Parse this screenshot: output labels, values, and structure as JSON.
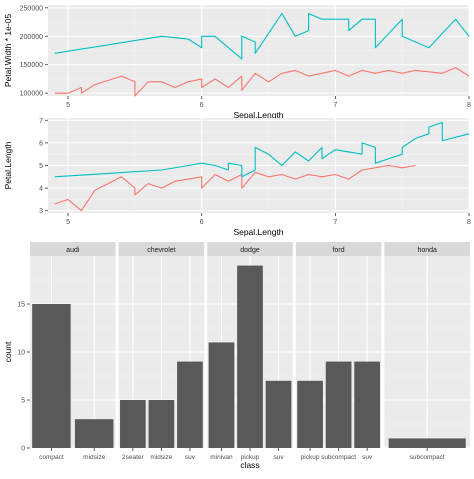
{
  "chart_data": [
    {
      "type": "line",
      "xlabel": "Sepal.Length",
      "ylabel": "Petal.Width * 1e-05",
      "xlim": [
        4.85,
        8.0
      ],
      "ylim": [
        95000,
        255000
      ],
      "x_ticks": [
        5,
        6,
        7,
        8
      ],
      "y_ticks": [
        100000,
        150000,
        200000,
        250000
      ],
      "y_tick_labels": [
        "100000",
        "150000",
        "200000",
        "250000"
      ],
      "grid": true,
      "legend": "none",
      "series": [
        {
          "color": "#F8766D",
          "points": [
            [
              4.9,
              100000
            ],
            [
              5.0,
              100000
            ],
            [
              5.1,
              110000
            ],
            [
              5.1,
              100000
            ],
            [
              5.2,
              115000
            ],
            [
              5.4,
              130000
            ],
            [
              5.5,
              120000
            ],
            [
              5.5,
              95000
            ],
            [
              5.6,
              120000
            ],
            [
              5.7,
              120000
            ],
            [
              5.8,
              110000
            ],
            [
              5.9,
              120000
            ],
            [
              6.0,
              125000
            ],
            [
              6.0,
              110000
            ],
            [
              6.1,
              125000
            ],
            [
              6.2,
              110000
            ],
            [
              6.3,
              130000
            ],
            [
              6.3,
              105000
            ],
            [
              6.4,
              135000
            ],
            [
              6.5,
              120000
            ],
            [
              6.6,
              135000
            ],
            [
              6.7,
              140000
            ],
            [
              6.8,
              130000
            ],
            [
              6.9,
              135000
            ],
            [
              7.0,
              140000
            ],
            [
              7.1,
              130000
            ],
            [
              7.2,
              140000
            ],
            [
              7.3,
              135000
            ],
            [
              7.4,
              140000
            ],
            [
              7.5,
              135000
            ],
            [
              7.6,
              140000
            ],
            [
              7.8,
              135000
            ],
            [
              7.9,
              145000
            ],
            [
              8.0,
              130000
            ]
          ]
        },
        {
          "color": "#00BFC4",
          "points": [
            [
              4.9,
              170000
            ],
            [
              5.7,
              200000
            ],
            [
              5.9,
              195000
            ],
            [
              6.0,
              180000
            ],
            [
              6.0,
              200000
            ],
            [
              6.1,
              200000
            ],
            [
              6.2,
              180000
            ],
            [
              6.3,
              160000
            ],
            [
              6.3,
              200000
            ],
            [
              6.4,
              190000
            ],
            [
              6.4,
              170000
            ],
            [
              6.6,
              240000
            ],
            [
              6.7,
              200000
            ],
            [
              6.8,
              210000
            ],
            [
              6.8,
              240000
            ],
            [
              6.9,
              230000
            ],
            [
              7.1,
              230000
            ],
            [
              7.1,
              210000
            ],
            [
              7.2,
              230000
            ],
            [
              7.3,
              230000
            ],
            [
              7.3,
              180000
            ],
            [
              7.5,
              230000
            ],
            [
              7.5,
              200000
            ],
            [
              7.6,
              190000
            ],
            [
              7.7,
              180000
            ],
            [
              7.9,
              230000
            ],
            [
              8.0,
              200000
            ]
          ]
        }
      ]
    },
    {
      "type": "line",
      "xlabel": "Sepal.Length",
      "ylabel": "Petal.Length",
      "xlim": [
        4.85,
        8.0
      ],
      "ylim": [
        2.9,
        7.1
      ],
      "x_ticks": [
        5,
        6,
        7,
        8
      ],
      "y_ticks": [
        3,
        4,
        5,
        6,
        7
      ],
      "grid": true,
      "legend": "none",
      "series": [
        {
          "color": "#F8766D",
          "points": [
            [
              4.9,
              3.3
            ],
            [
              5.0,
              3.5
            ],
            [
              5.1,
              3.0
            ],
            [
              5.2,
              3.9
            ],
            [
              5.4,
              4.5
            ],
            [
              5.5,
              4.0
            ],
            [
              5.5,
              3.7
            ],
            [
              5.6,
              4.2
            ],
            [
              5.7,
              4.0
            ],
            [
              5.8,
              4.3
            ],
            [
              5.9,
              4.4
            ],
            [
              6.0,
              4.5
            ],
            [
              6.0,
              4.0
            ],
            [
              6.1,
              4.6
            ],
            [
              6.2,
              4.3
            ],
            [
              6.3,
              4.6
            ],
            [
              6.3,
              4.0
            ],
            [
              6.4,
              4.7
            ],
            [
              6.5,
              4.5
            ],
            [
              6.6,
              4.6
            ],
            [
              6.7,
              4.4
            ],
            [
              6.8,
              4.6
            ],
            [
              6.9,
              4.5
            ],
            [
              7.0,
              4.6
            ],
            [
              7.1,
              4.4
            ],
            [
              7.2,
              4.8
            ],
            [
              7.3,
              4.9
            ],
            [
              7.4,
              5.0
            ],
            [
              7.5,
              4.9
            ],
            [
              7.6,
              5.0
            ]
          ]
        },
        {
          "color": "#00BFC4",
          "points": [
            [
              4.9,
              4.5
            ],
            [
              5.7,
              4.8
            ],
            [
              5.9,
              5.0
            ],
            [
              6.0,
              5.1
            ],
            [
              6.1,
              5.0
            ],
            [
              6.2,
              4.8
            ],
            [
              6.2,
              5.1
            ],
            [
              6.3,
              5.0
            ],
            [
              6.3,
              4.5
            ],
            [
              6.4,
              4.8
            ],
            [
              6.4,
              5.8
            ],
            [
              6.5,
              5.5
            ],
            [
              6.6,
              5.0
            ],
            [
              6.7,
              5.6
            ],
            [
              6.8,
              5.2
            ],
            [
              6.9,
              5.8
            ],
            [
              6.9,
              5.3
            ],
            [
              7.0,
              5.7
            ],
            [
              7.2,
              5.5
            ],
            [
              7.2,
              6.0
            ],
            [
              7.3,
              5.8
            ],
            [
              7.3,
              5.1
            ],
            [
              7.5,
              5.5
            ],
            [
              7.5,
              5.8
            ],
            [
              7.6,
              6.2
            ],
            [
              7.7,
              6.4
            ],
            [
              7.7,
              6.7
            ],
            [
              7.8,
              6.9
            ],
            [
              7.8,
              6.1
            ],
            [
              8.0,
              6.4
            ]
          ]
        }
      ]
    },
    {
      "type": "bar",
      "xlabel": "class",
      "ylabel": "count",
      "ylim": [
        0,
        20
      ],
      "y_ticks": [
        0,
        5,
        10,
        15
      ],
      "grid": true,
      "facets": [
        {
          "label": "audi",
          "categories": [
            "compact",
            "midsize"
          ],
          "values": [
            15,
            3
          ]
        },
        {
          "label": "chevrolet",
          "categories": [
            "2seater",
            "midsize",
            "suv"
          ],
          "values": [
            5,
            5,
            9
          ]
        },
        {
          "label": "dodge",
          "categories": [
            "minivan",
            "pickup",
            "suv"
          ],
          "values": [
            11,
            19,
            7
          ]
        },
        {
          "label": "ford",
          "categories": [
            "pickup",
            "subcompact",
            "suv"
          ],
          "values": [
            7,
            9,
            9
          ]
        },
        {
          "label": "honda",
          "categories": [
            "subcompact"
          ],
          "values": [
            1
          ]
        }
      ]
    }
  ],
  "colors": {
    "panel_bg": "#EBEBEB",
    "grid_major": "#FFFFFF",
    "strip_bg": "#D9D9D9",
    "bar_fill": "#595959",
    "axis_text": "#4D4D4D",
    "title_text": "#000000"
  }
}
